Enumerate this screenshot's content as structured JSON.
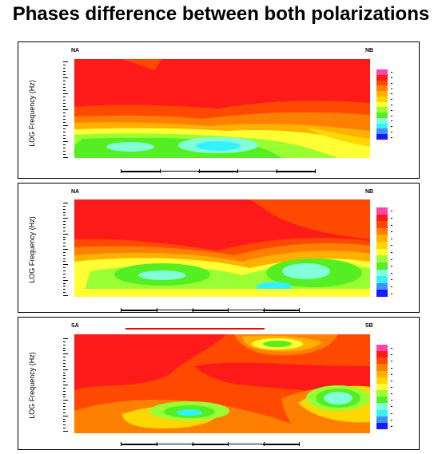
{
  "title": "Phases difference between both polarizations",
  "colors": {
    "scale": [
      "#1a1aff",
      "#3f8fff",
      "#33f2ff",
      "#80ffd9",
      "#55ee22",
      "#99ff33",
      "#ffff33",
      "#ffd700",
      "#ffb000",
      "#ff8000",
      "#ff4800",
      "#ff1a1a",
      "#ff44aa"
    ],
    "profile_marker": "#ff0000"
  },
  "panels": [
    {
      "ylabel": "LOG Frequency (Hz)",
      "left_label": "NA",
      "right_label": "NB"
    },
    {
      "ylabel": "LOG Frequency (Hz)",
      "left_label": "NA",
      "right_label": "NB"
    },
    {
      "ylabel": "LOG Frequency (Hz)",
      "left_label": "SA",
      "right_label": "SB"
    }
  ],
  "chart_data": {
    "type": "heatmap",
    "title": "Phases difference between both polarizations",
    "ylabel": "LOG Frequency (Hz)",
    "colormap": "rainbow (blue low, red/magenta high)",
    "panels": [
      {
        "left": "NA",
        "right": "NB"
      },
      {
        "left": "NA",
        "right": "NB"
      },
      {
        "left": "SA",
        "right": "SB",
        "marker": "red line above profile"
      }
    ]
  }
}
